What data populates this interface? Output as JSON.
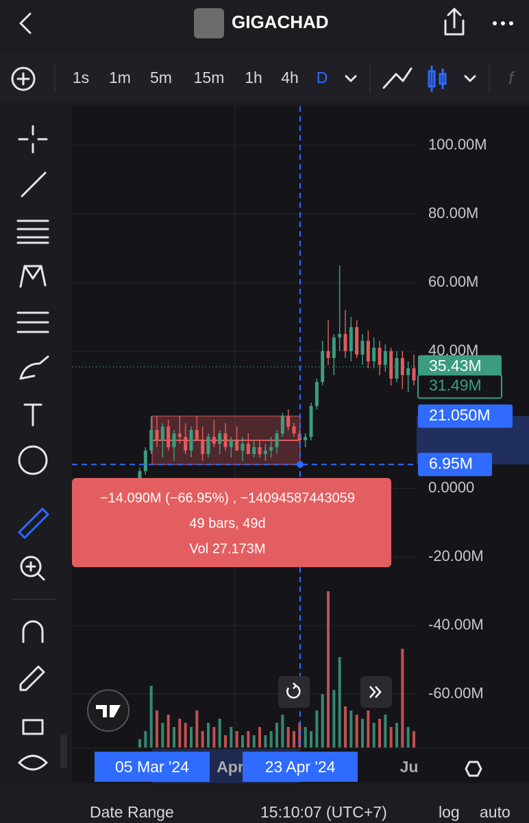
{
  "header": {
    "title": "GIGACHAD"
  },
  "toolbar": {
    "intervals": [
      "1s",
      "1m",
      "5m",
      "15m",
      "1h",
      "4h",
      "D"
    ]
  },
  "chart_data": {
    "type": "candlestick",
    "up_color": "#3b9c80",
    "down_color": "#e05b5d",
    "ylim": [
      -75.6,
      111.4
    ],
    "yticks": [
      {
        "value": 100,
        "label": "100.00M"
      },
      {
        "value": 80,
        "label": "80.00M"
      },
      {
        "value": 60,
        "label": "60.00M"
      },
      {
        "value": 40,
        "label": "40.00M"
      },
      {
        "value": 0,
        "label": "0.0000"
      },
      {
        "value": -20,
        "label": "-20.00M"
      },
      {
        "value": -40,
        "label": "-40.00M"
      },
      {
        "value": -60,
        "label": "-60.00M"
      }
    ],
    "ohlc": [
      [
        3,
        6,
        2,
        5
      ],
      [
        5,
        12,
        4,
        11
      ],
      [
        11,
        21,
        10,
        17
      ],
      [
        17,
        21,
        12,
        14
      ],
      [
        14,
        19,
        9,
        18
      ],
      [
        18,
        20,
        11,
        12
      ],
      [
        12,
        17,
        8,
        16
      ],
      [
        16,
        21,
        13,
        15
      ],
      [
        15,
        19,
        10,
        11
      ],
      [
        11,
        18,
        9,
        17
      ],
      [
        17,
        21,
        14,
        14
      ],
      [
        14,
        18,
        8,
        10
      ],
      [
        10,
        16,
        9,
        15
      ],
      [
        15,
        20,
        12,
        13
      ],
      [
        13,
        17,
        10,
        16
      ],
      [
        16,
        19,
        11,
        12
      ],
      [
        12,
        15,
        9,
        14
      ],
      [
        14,
        18,
        11,
        11
      ],
      [
        11,
        15,
        8,
        13
      ],
      [
        13,
        16,
        10,
        10
      ],
      [
        10,
        14,
        9,
        12
      ],
      [
        12,
        14,
        9,
        10
      ],
      [
        10,
        13,
        8,
        11
      ],
      [
        11,
        15,
        9,
        12
      ],
      [
        12,
        17,
        10,
        16
      ],
      [
        16,
        22,
        15,
        21
      ],
      [
        21,
        23,
        17,
        18
      ],
      [
        18,
        19,
        15,
        16
      ],
      [
        16,
        17,
        13,
        14
      ],
      [
        14,
        16,
        12,
        15
      ],
      [
        15,
        25,
        14,
        24
      ],
      [
        24,
        32,
        23,
        31
      ],
      [
        31,
        43,
        30,
        40
      ],
      [
        40,
        49,
        36,
        38
      ],
      [
        38,
        45,
        33,
        44
      ],
      [
        44,
        65,
        40,
        45
      ],
      [
        45,
        52,
        38,
        40
      ],
      [
        40,
        50,
        37,
        47
      ],
      [
        47,
        49,
        38,
        39
      ],
      [
        39,
        45,
        36,
        43
      ],
      [
        43,
        46,
        35,
        37
      ],
      [
        37,
        44,
        35,
        41
      ],
      [
        41,
        43,
        33,
        36
      ],
      [
        36,
        42,
        34,
        40
      ],
      [
        40,
        41,
        30,
        32
      ],
      [
        32,
        40,
        31,
        38
      ],
      [
        38,
        40,
        29,
        33
      ],
      [
        33,
        37,
        28,
        35
      ],
      [
        35,
        39,
        30,
        31.49
      ]
    ],
    "volume": [
      2,
      4,
      15,
      9,
      6,
      8,
      5,
      7,
      6,
      5,
      9,
      4,
      6,
      5,
      7,
      3,
      5,
      4,
      3,
      4,
      3,
      5,
      3,
      4,
      6,
      8,
      5,
      4,
      6,
      5,
      4,
      9,
      13,
      38,
      14,
      22,
      10,
      9,
      8,
      7,
      9,
      6,
      7,
      8,
      5,
      6,
      24,
      5,
      4
    ],
    "price_markers": {
      "values": [
        35.43,
        31.49,
        21.05,
        6.95
      ],
      "value_labels": [
        "35.43M",
        "31.49M",
        "21.050M",
        "6.95M"
      ]
    },
    "measure": {
      "lines": [
        "−14.090M (−66.95%) , −14094587443059",
        "49 bars, 49d",
        "Vol 27.173M"
      ]
    },
    "time_labels": [
      "05 Mar '24",
      "Apr",
      "23 Apr '24",
      "Ju"
    ]
  },
  "footer": {
    "date_range": "Date Range",
    "clock": "15:10:07 (UTC+7)",
    "log": "log",
    "auto": "auto"
  }
}
